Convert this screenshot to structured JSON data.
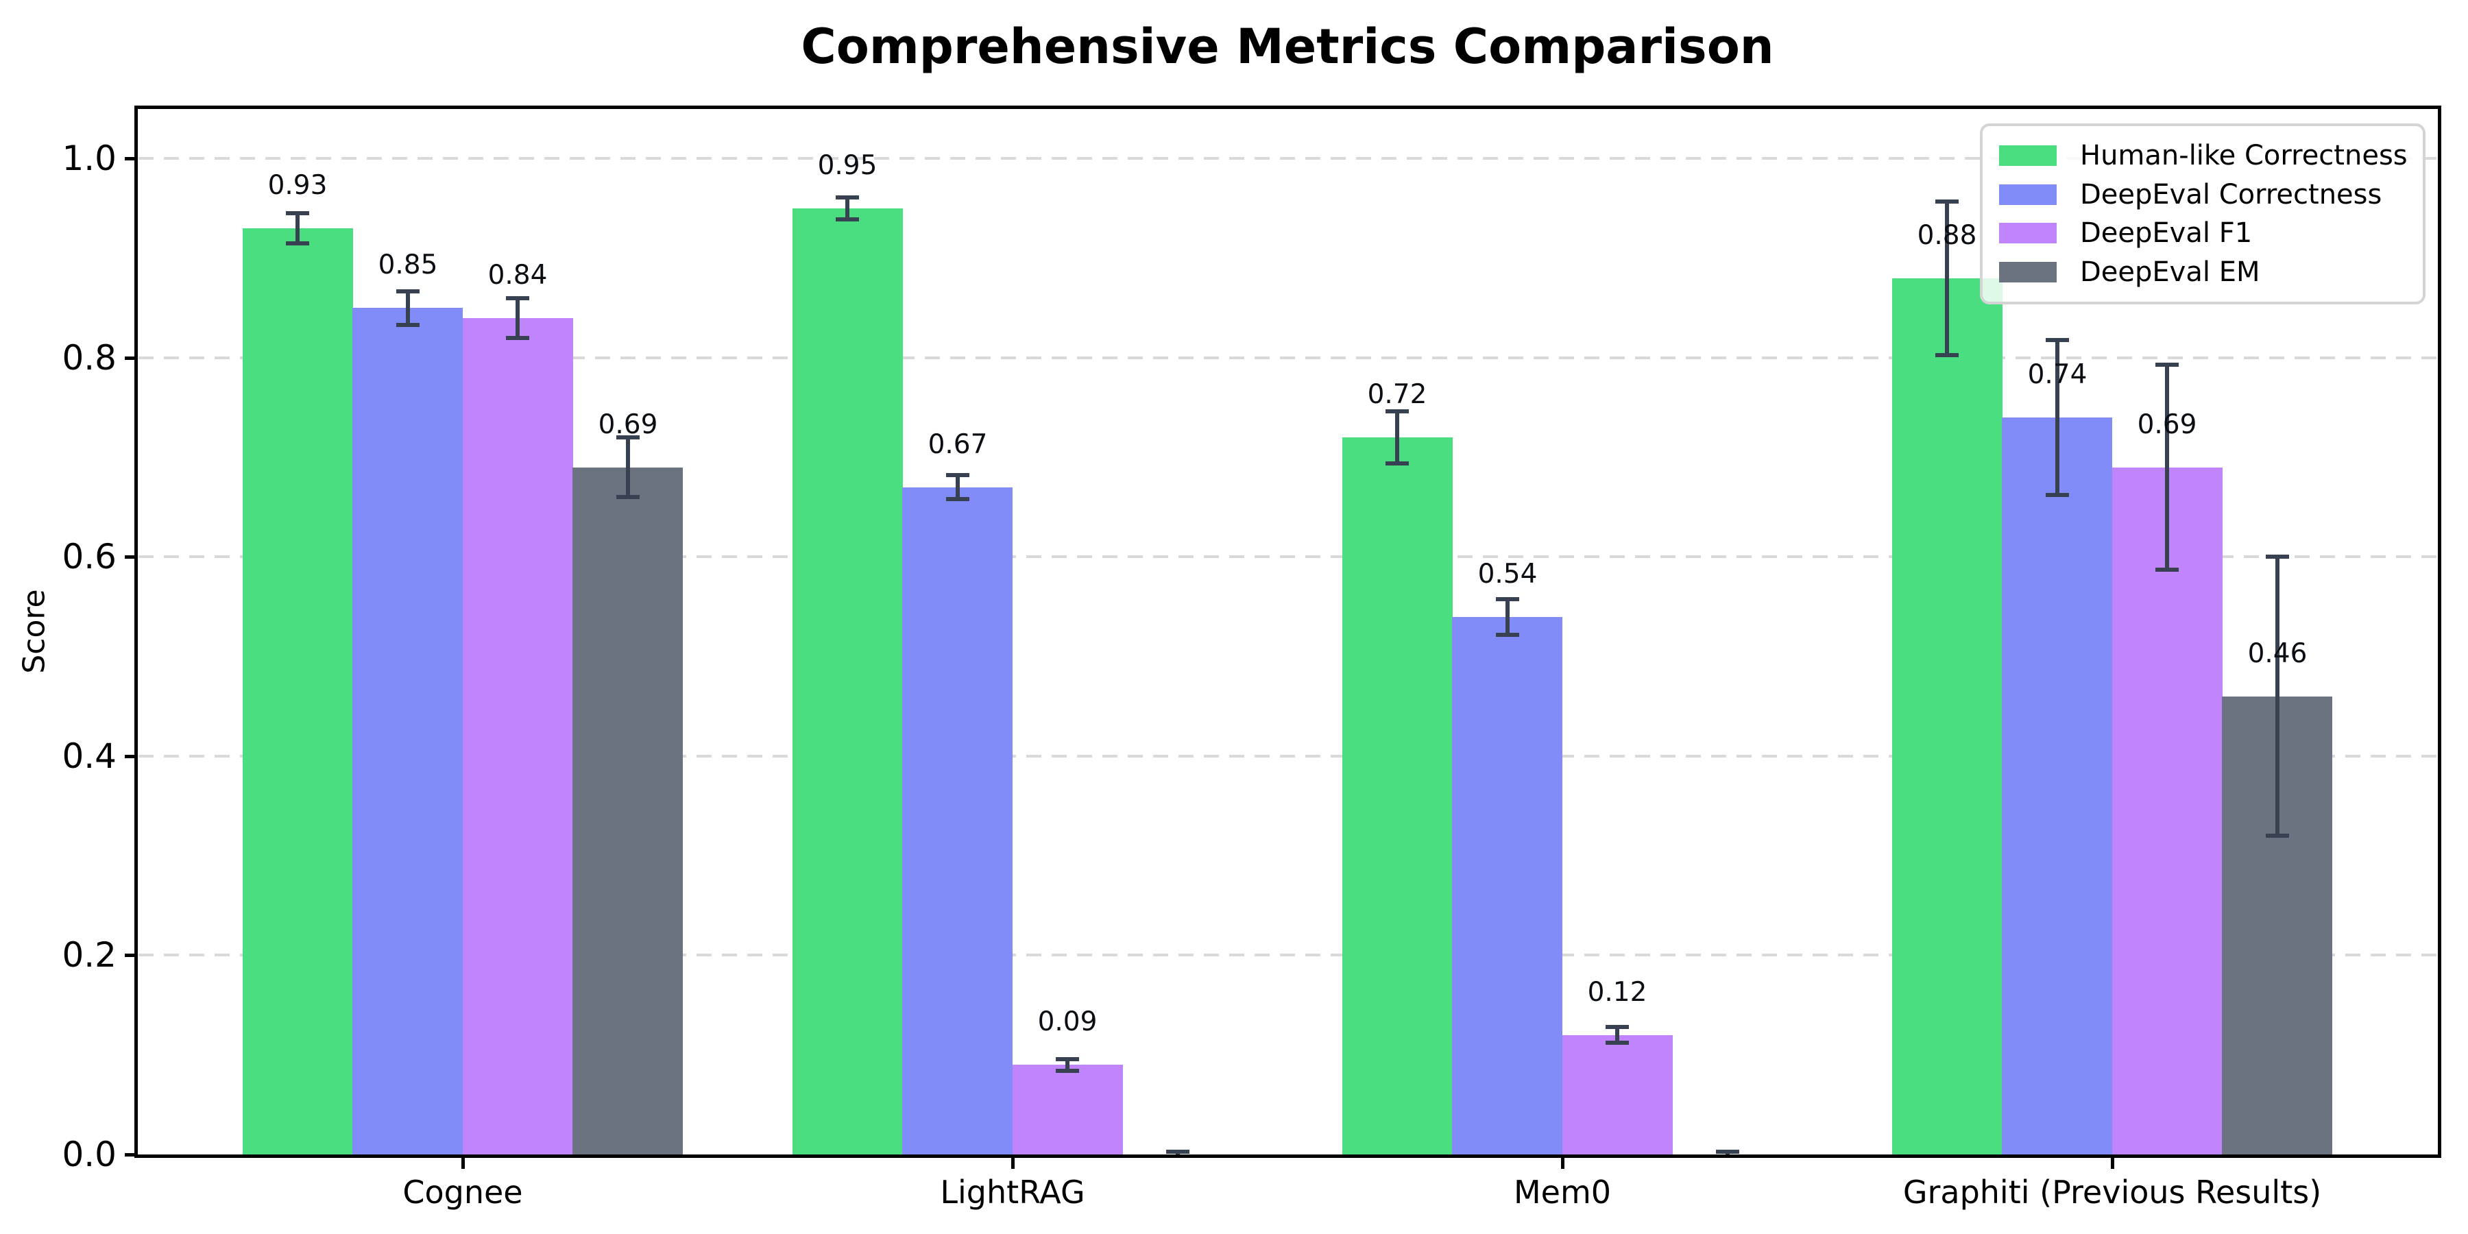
{
  "chart_data": {
    "type": "bar",
    "title": "Comprehensive Metrics Comparison",
    "ylabel": "Score",
    "xlabel": "",
    "categories": [
      "Cognee",
      "LightRAG",
      "Mem0",
      "Graphiti (Previous Results)"
    ],
    "series": [
      {
        "name": "Human-like Correctness",
        "color": "#4ade80",
        "values": [
          0.93,
          0.95,
          0.72,
          0.88
        ],
        "errors": [
          0.015,
          0.011,
          0.026,
          0.077
        ],
        "labels": [
          "0.93",
          "0.95",
          "0.72",
          "0.88"
        ]
      },
      {
        "name": "DeepEval Correctness",
        "color": "#818cf8",
        "values": [
          0.85,
          0.67,
          0.54,
          0.74
        ],
        "errors": [
          0.017,
          0.012,
          0.018,
          0.078
        ],
        "labels": [
          "0.85",
          "0.67",
          "0.54",
          "0.74"
        ]
      },
      {
        "name": "DeepEval F1",
        "color": "#c084fc",
        "values": [
          0.84,
          0.09,
          0.12,
          0.69
        ],
        "errors": [
          0.02,
          0.006,
          0.008,
          0.103
        ],
        "labels": [
          "0.84",
          "0.09",
          "0.12",
          "0.69"
        ]
      },
      {
        "name": "DeepEval EM",
        "color": "#6b7280",
        "values": [
          0.69,
          0.0,
          0.0,
          0.46
        ],
        "errors": [
          0.03,
          0.003,
          0.003,
          0.14
        ],
        "labels": [
          "0.69",
          null,
          null,
          "0.46"
        ]
      }
    ],
    "yticks": [
      "0.0",
      "0.2",
      "0.4",
      "0.6",
      "0.8",
      "1.0"
    ],
    "ylim": [
      0,
      1.05
    ],
    "grid": "horizontal-dashed",
    "legend_position": "upper-right",
    "error_color": "#374151",
    "gridline_color": "#d9d9d9",
    "spine_color": "#000000"
  }
}
